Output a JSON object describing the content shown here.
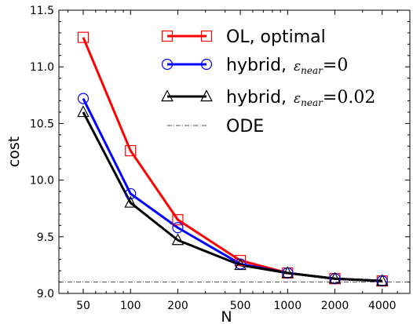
{
  "chart_data": {
    "type": "line",
    "xscale": "log",
    "xlabel": "N",
    "ylabel": "cost",
    "xlim": [
      35,
      6000
    ],
    "ylim": [
      9.0,
      11.5
    ],
    "x": [
      50,
      100,
      200,
      500,
      1000,
      2000,
      4000
    ],
    "xticks": [
      "50",
      "100",
      "200",
      "500",
      "1000",
      "2000",
      "4000"
    ],
    "yticks": [
      "9.0",
      "9.5",
      "10.0",
      "10.5",
      "11.0",
      "11.5"
    ],
    "yticks_values": [
      9.0,
      9.5,
      10.0,
      10.5,
      11.0,
      11.5
    ],
    "legend_position": "top-right",
    "grid": false,
    "series": [
      {
        "name": "OL, optimal",
        "color": "#ff0000",
        "marker": "square",
        "values": [
          11.26,
          10.26,
          9.65,
          9.29,
          9.18,
          9.13,
          9.11
        ]
      },
      {
        "name": "hybrid, ε_near = 0",
        "legend_prefix": "hybrid, ",
        "legend_math": "ε",
        "legend_sub": "near",
        "legend_eq": "=0",
        "color": "#0000ff",
        "marker": "circle",
        "values": [
          10.72,
          9.88,
          9.58,
          9.26,
          9.18,
          9.13,
          9.11
        ]
      },
      {
        "name": "hybrid, ε_near = 0.02",
        "legend_prefix": "hybrid, ",
        "legend_math": "ε",
        "legend_sub": "near",
        "legend_eq": "=0.02",
        "color": "#000000",
        "marker": "triangle",
        "values": [
          10.6,
          9.8,
          9.47,
          9.25,
          9.18,
          9.13,
          9.11
        ]
      }
    ],
    "reference_line": {
      "name": "ODE",
      "value": 9.1,
      "style": "dashdot",
      "color": "#555555"
    }
  }
}
